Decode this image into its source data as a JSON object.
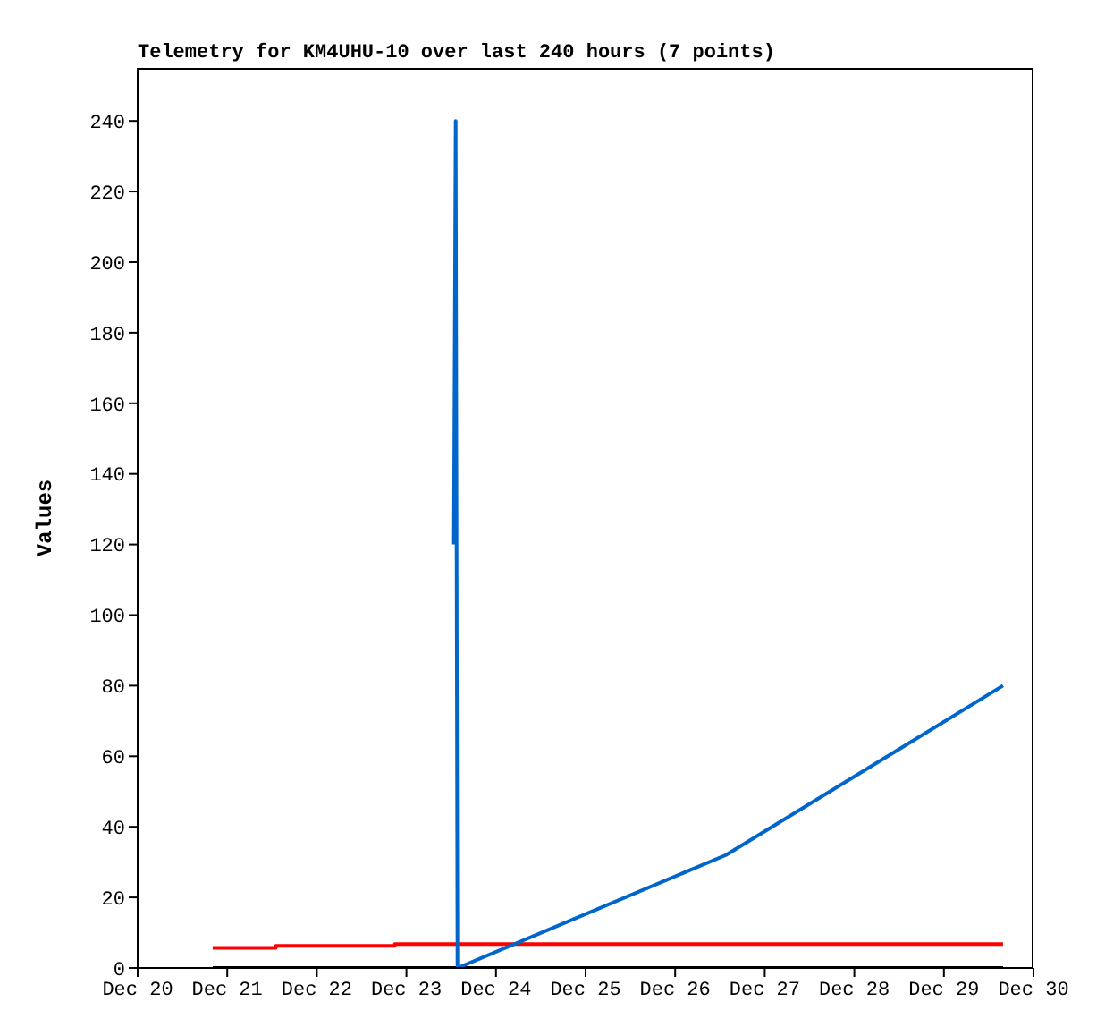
{
  "chart_data": {
    "type": "line",
    "title": "Telemetry for KM4UHU-10 over last 240 hours (7 points)",
    "ylabel": "Values",
    "xlim": [
      "--12-20",
      "--12-30"
    ],
    "ylim": [
      0,
      255
    ],
    "xticks": [
      {
        "value": "--12-20",
        "label": "Dec 20"
      },
      {
        "value": "--12-21",
        "label": "Dec 21"
      },
      {
        "value": "--12-22",
        "label": "Dec 22"
      },
      {
        "value": "--12-23",
        "label": "Dec 23"
      },
      {
        "value": "--12-24",
        "label": "Dec 24"
      },
      {
        "value": "--12-25",
        "label": "Dec 25"
      },
      {
        "value": "--12-26",
        "label": "Dec 26"
      },
      {
        "value": "--12-27",
        "label": "Dec 27"
      },
      {
        "value": "--12-28",
        "label": "Dec 28"
      },
      {
        "value": "--12-29",
        "label": "Dec 29"
      },
      {
        "value": "--12-30",
        "label": "Dec 30"
      }
    ],
    "yticks": [
      0,
      20,
      40,
      60,
      80,
      100,
      120,
      140,
      160,
      180,
      200,
      220,
      240
    ],
    "marker": "none",
    "series": [
      {
        "type": "step",
        "color": "#ff0000",
        "x": [
          "--12-20T20:06",
          "--12-21T13:00",
          "--12-22T20:53",
          "--12-29T15:50"
        ],
        "values": [
          5.7,
          6.3,
          6.8,
          6.8
        ]
      },
      {
        "type": "step",
        "color": "#000000",
        "x": [
          "--12-20T20:06",
          "--12-29T15:50"
        ],
        "values": [
          0,
          0
        ]
      },
      {
        "color": "#0066cc",
        "x": [
          "--12-23T12:43",
          "--12-23T13:12",
          "--12-23T13:41",
          "--12-26T13:36",
          "--12-29T15:50"
        ],
        "values": [
          120,
          240,
          0,
          32,
          80
        ]
      }
    ]
  }
}
